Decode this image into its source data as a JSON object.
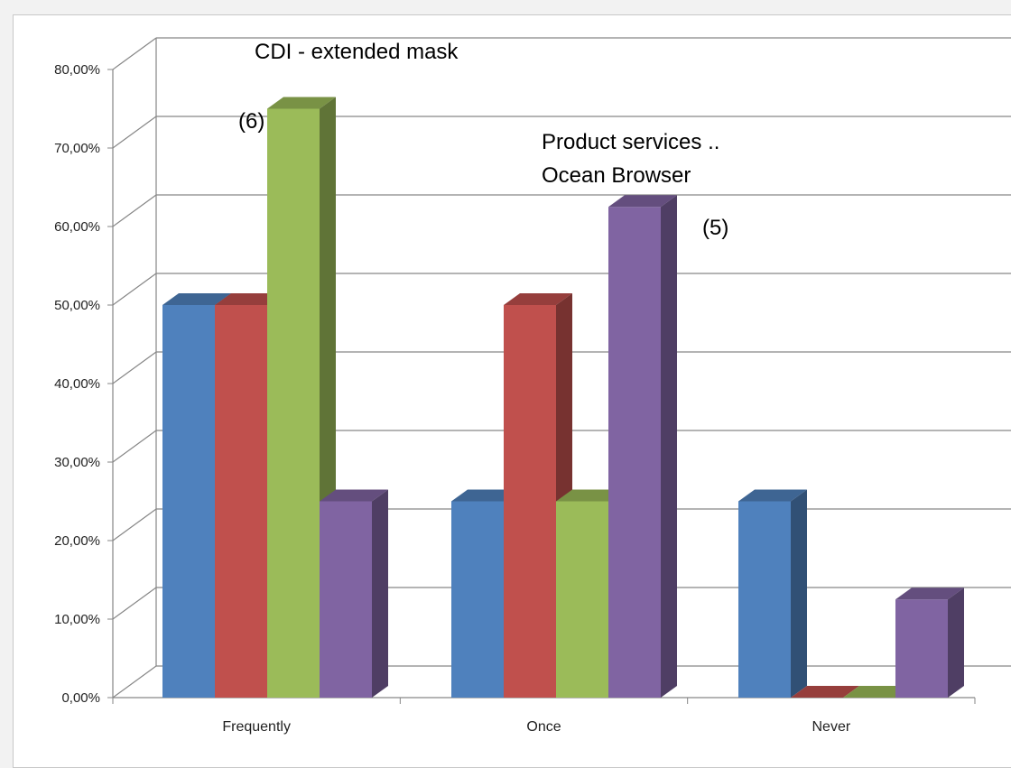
{
  "chart_data": {
    "type": "bar",
    "categories": [
      "Frequently",
      "Once",
      "Never"
    ],
    "series": [
      {
        "color": "#4f81bd",
        "values": [
          0.5,
          0.25,
          0.25
        ]
      },
      {
        "color": "#c0504d",
        "values": [
          0.5,
          0.5,
          0.0
        ]
      },
      {
        "color": "#9bbb59",
        "values": [
          0.75,
          0.25,
          0.0
        ]
      },
      {
        "color": "#8064a2",
        "values": [
          0.25,
          0.625,
          0.125
        ]
      }
    ],
    "ylim": [
      0,
      0.8
    ],
    "yticks": [
      "0,00%",
      "10,00%",
      "20,00%",
      "30,00%",
      "40,00%",
      "50,00%",
      "60,00%",
      "70,00%",
      "80,00%"
    ],
    "grid": true,
    "annotations": [
      {
        "text": "CDI  - extended mask"
      },
      {
        "text": "(6)"
      },
      {
        "text": "Product  services .."
      },
      {
        "text": "Ocean Browser"
      },
      {
        "text": "(5)"
      }
    ]
  }
}
